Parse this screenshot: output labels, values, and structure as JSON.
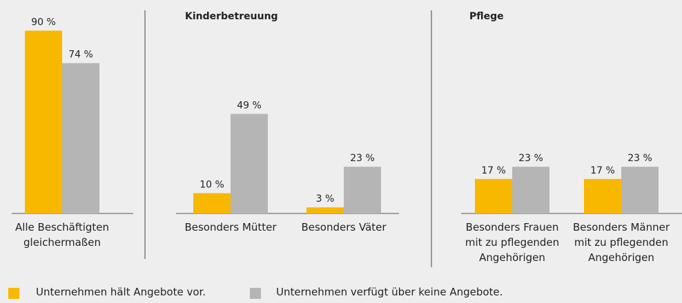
{
  "chart_data": [
    {
      "type": "bar",
      "categories": [
        "Alle Beschäftigten gleichermaßen"
      ],
      "series": [
        {
          "name": "Unternehmen hält Angebote vor.",
          "color": "#f9b800",
          "values": [
            90
          ],
          "value_labels": [
            "90 %"
          ]
        },
        {
          "name": "Unternehmen verfügt über keine Angebote.",
          "color": "#b5b5b5",
          "values": [
            74
          ],
          "value_labels": [
            "74 %"
          ]
        }
      ]
    },
    {
      "type": "bar",
      "title": "Kinderbetreuung",
      "categories": [
        "Besonders Mütter",
        "Besonders Väter"
      ],
      "series": [
        {
          "name": "Unternehmen hält Angebote vor.",
          "color": "#f9b800",
          "values": [
            10,
            3
          ],
          "value_labels": [
            "10 %",
            "3 %"
          ]
        },
        {
          "name": "Unternehmen verfügt über keine Angebote.",
          "color": "#b5b5b5",
          "values": [
            49,
            23
          ],
          "value_labels": [
            "49 %",
            "23 %"
          ]
        }
      ]
    },
    {
      "type": "bar",
      "title": "Pflege",
      "categories": [
        "Besonders Frauen mit zu pflegenden Angehörigen",
        "Besonders Männer mit zu pflegenden Angehörigen"
      ],
      "series": [
        {
          "name": "Unternehmen hält Angebote vor.",
          "color": "#f9b800",
          "values": [
            17,
            17
          ],
          "value_labels": [
            "17 %",
            "17 %"
          ]
        },
        {
          "name": "Unternehmen verfügt über keine Angebote.",
          "color": "#b5b5b5",
          "values": [
            23,
            23
          ],
          "value_labels": [
            "23 %",
            "23 %"
          ]
        }
      ]
    }
  ]
}
